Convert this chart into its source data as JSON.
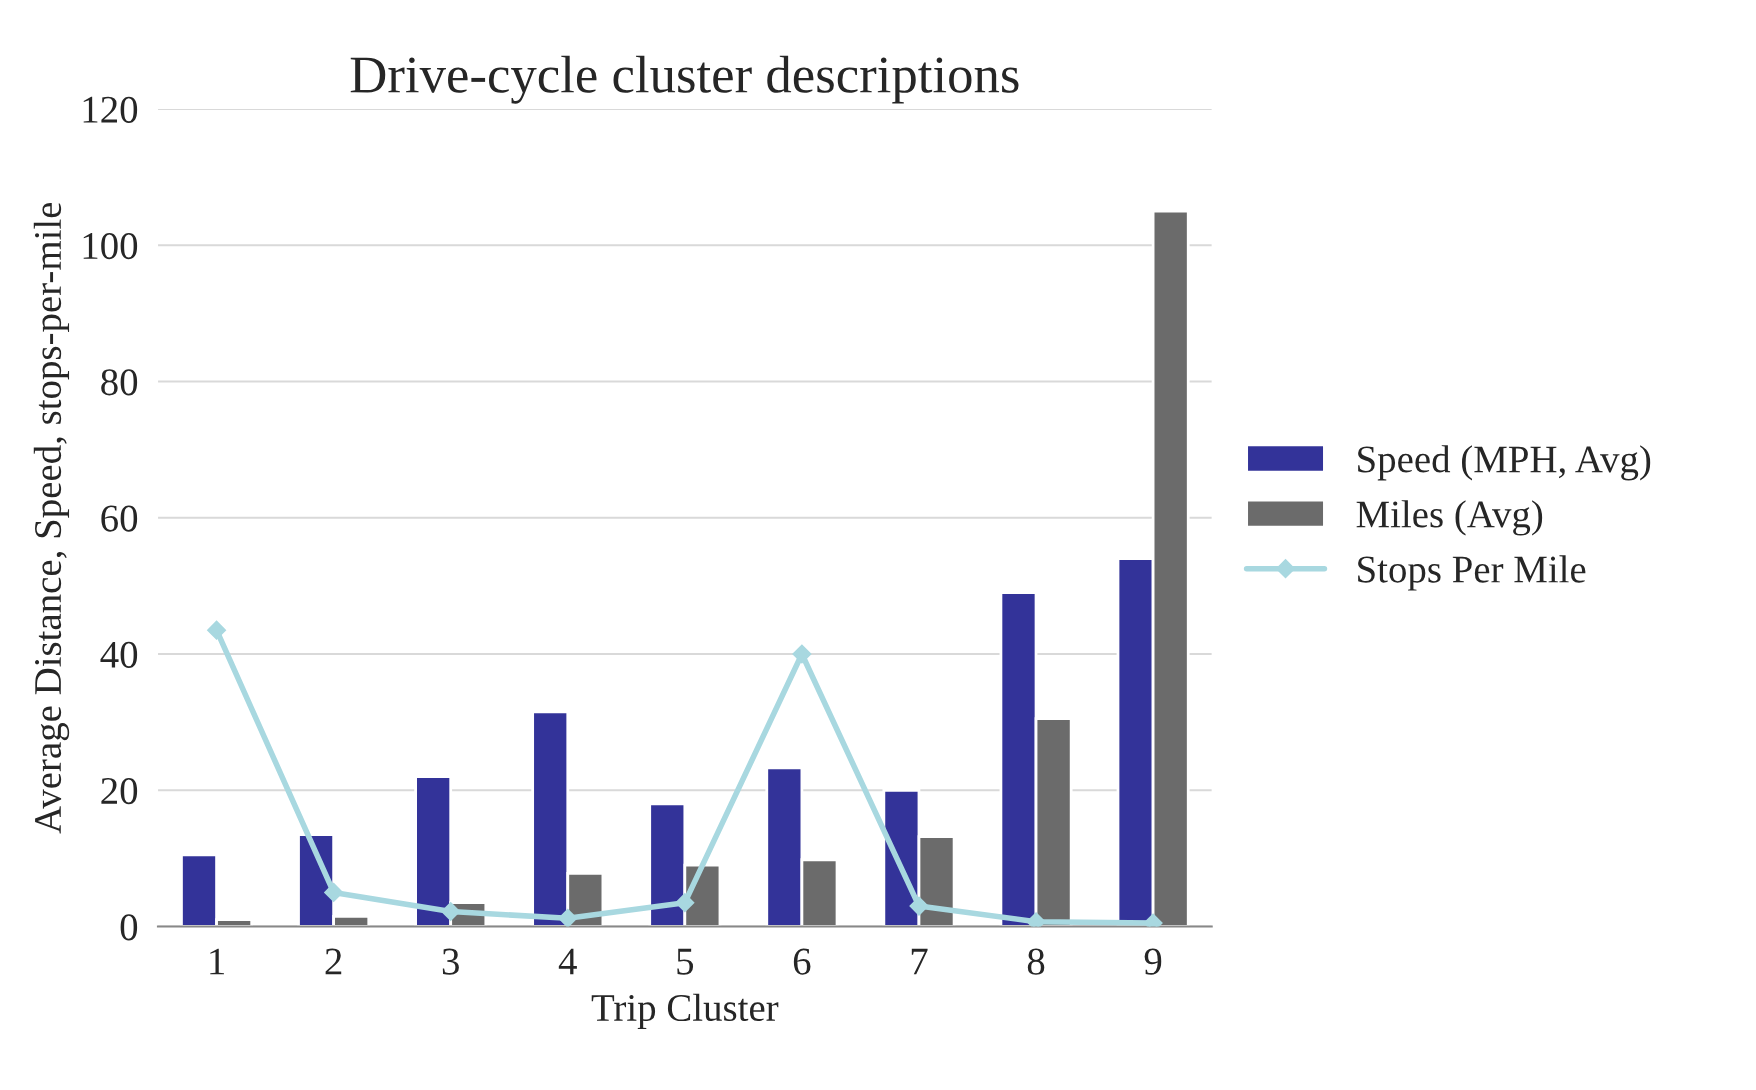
{
  "chart_data": {
    "type": "bar",
    "title": "Drive-cycle cluster descriptions",
    "xlabel": "Trip Cluster",
    "ylabel": "Average Distance, Speed, stops-per-mile",
    "categories": [
      "1",
      "2",
      "3",
      "4",
      "5",
      "6",
      "7",
      "8",
      "9"
    ],
    "series": [
      {
        "name": "Speed (MPH, Avg)",
        "color": "#333399",
        "values": [
          10.5,
          13.5,
          22,
          31.5,
          18,
          23.3,
          20,
          49,
          54
        ]
      },
      {
        "name": "Miles (Avg)",
        "color": "#6b6b6b",
        "values": [
          1,
          1.5,
          3.5,
          7.8,
          9,
          9.8,
          13.2,
          30.5,
          105
        ]
      },
      {
        "name": "Stops Per Mile",
        "type": "line",
        "color": "#a8d8e0",
        "marker": "diamond",
        "values": [
          43.5,
          5,
          2.2,
          1.2,
          3.5,
          40,
          3,
          0.7,
          0.5
        ]
      }
    ],
    "ylim": [
      0,
      120
    ],
    "yticks": [
      0,
      20,
      40,
      60,
      80,
      100,
      120
    ],
    "grid": "y",
    "legend": "right"
  }
}
